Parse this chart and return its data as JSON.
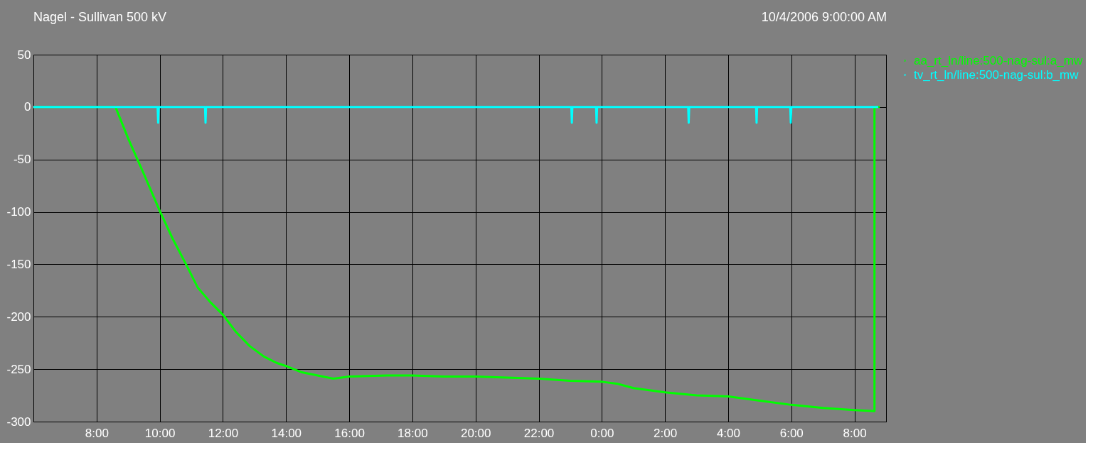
{
  "chart_data": {
    "type": "line",
    "title": "Nagel - Sullivan 500 kV",
    "annotations": [
      "10/4/2006 9:00:00 AM"
    ],
    "xlim": [
      "2006-10-03T06:00",
      "2006-10-04T09:00"
    ],
    "xticks": [
      {
        "value": "2006-10-03T08:00",
        "label": "8:00"
      },
      {
        "value": "2006-10-03T10:00",
        "label": "10:00"
      },
      {
        "value": "2006-10-03T12:00",
        "label": "12:00"
      },
      {
        "value": "2006-10-03T14:00",
        "label": "14:00"
      },
      {
        "value": "2006-10-03T16:00",
        "label": "16:00"
      },
      {
        "value": "2006-10-03T18:00",
        "label": "18:00"
      },
      {
        "value": "2006-10-03T20:00",
        "label": "20:00"
      },
      {
        "value": "2006-10-03T22:00",
        "label": "22:00"
      },
      {
        "value": "2006-10-04T00:00",
        "label": "0:00"
      },
      {
        "value": "2006-10-04T02:00",
        "label": "2:00"
      },
      {
        "value": "2006-10-04T04:00",
        "label": "4:00"
      },
      {
        "value": "2006-10-04T06:00",
        "label": "6:00"
      },
      {
        "value": "2006-10-04T08:00",
        "label": "8:00"
      }
    ],
    "ylim": [
      -300,
      50
    ],
    "yticks": [
      50,
      0,
      -50,
      -100,
      -150,
      -200,
      -250,
      -300
    ],
    "grid": true,
    "legend": "right",
    "marker": "none",
    "line_style": "solid",
    "series": [
      {
        "name": "aa_rt_ln/line:500-nag-sul:a_mw",
        "color": "#00ff00",
        "x": [
          "2006-10-03T06:00",
          "2006-10-03T08:36",
          "2006-10-03T09:00",
          "2006-10-03T09:30",
          "2006-10-03T10:00",
          "2006-10-03T10:24",
          "2006-10-03T10:50",
          "2006-10-03T11:12",
          "2006-10-03T11:36",
          "2006-10-03T12:00",
          "2006-10-03T12:24",
          "2006-10-03T12:51",
          "2006-10-03T13:18",
          "2006-10-03T13:42",
          "2006-10-03T14:00",
          "2006-10-03T14:30",
          "2006-10-03T15:00",
          "2006-10-03T15:30",
          "2006-10-03T16:00",
          "2006-10-03T17:12",
          "2006-10-03T18:00",
          "2006-10-03T19:00",
          "2006-10-03T20:00",
          "2006-10-03T21:00",
          "2006-10-03T22:00",
          "2006-10-03T23:00",
          "2006-10-04T00:00",
          "2006-10-04T00:30",
          "2006-10-04T01:00",
          "2006-10-04T02:00",
          "2006-10-04T03:00",
          "2006-10-04T04:00",
          "2006-10-04T05:00",
          "2006-10-04T06:00",
          "2006-10-04T07:00",
          "2006-10-04T08:00",
          "2006-10-04T08:38",
          "2006-10-04T08:38",
          "2006-10-04T08:48"
        ],
        "values": [
          0,
          0,
          -30,
          -64,
          -99,
          -125,
          -150,
          -172,
          -186,
          -198,
          -214,
          -228,
          -238,
          -244,
          -247,
          -253,
          -256,
          -259,
          -257,
          -256,
          -256,
          -257,
          -257,
          -258,
          -259,
          -261,
          -262,
          -264,
          -268,
          -272,
          -275,
          -276,
          -280,
          -284,
          -287,
          -289,
          -290,
          0,
          0
        ]
      },
      {
        "name": "tv_rt_ln/line:500-nag-sul:b_mw",
        "color": "#00ffff",
        "x": [
          "2006-10-03T06:00",
          "2006-10-03T09:56",
          "2006-10-03T09:57",
          "2006-10-03T09:58",
          "2006-10-03T11:26",
          "2006-10-03T11:27",
          "2006-10-03T11:28",
          "2006-10-03T23:02",
          "2006-10-03T23:03",
          "2006-10-03T23:04",
          "2006-10-03T23:49",
          "2006-10-03T23:50",
          "2006-10-03T23:51",
          "2006-10-04T02:44",
          "2006-10-04T02:45",
          "2006-10-04T02:46",
          "2006-10-04T04:53",
          "2006-10-04T04:54",
          "2006-10-04T04:55",
          "2006-10-04T05:58",
          "2006-10-04T05:59",
          "2006-10-04T06:00",
          "2006-10-04T08:45"
        ],
        "values": [
          0,
          0,
          -15,
          0,
          0,
          -15,
          0,
          0,
          -15,
          0,
          0,
          -15,
          0,
          0,
          -15,
          0,
          0,
          -15,
          0,
          0,
          -15,
          0,
          0
        ]
      }
    ]
  }
}
